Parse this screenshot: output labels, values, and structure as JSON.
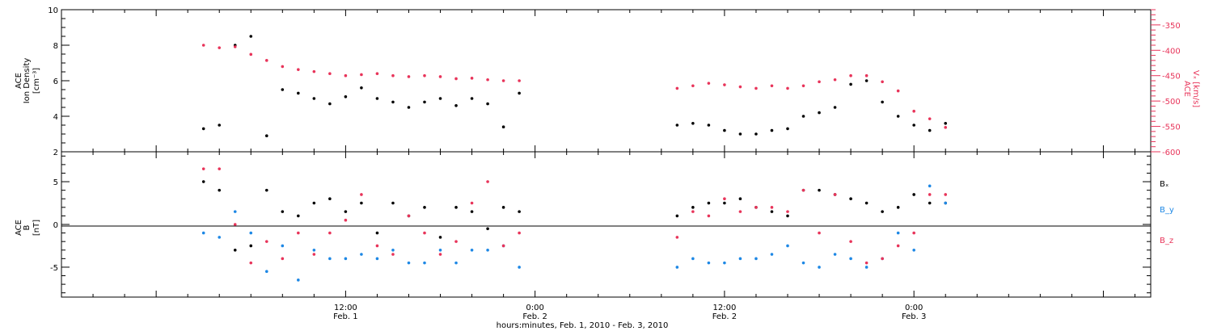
{
  "x_axis": {
    "title": "hours:minutes, Feb.  1, 2010 - Feb.  3, 2010",
    "range_hours": [
      -6,
      63
    ],
    "major_ticks": [
      {
        "hour": 12,
        "time": "12:00",
        "date": "Feb. 1"
      },
      {
        "hour": 24,
        "time": "0:00",
        "date": "Feb. 2"
      },
      {
        "hour": 36,
        "time": "12:00",
        "date": "Feb. 2"
      },
      {
        "hour": 48,
        "time": "0:00",
        "date": "Feb. 3"
      }
    ]
  },
  "panels": {
    "top": {
      "ylabel_left": [
        "ACE",
        "Ion Density",
        "[cm⁻³]"
      ],
      "ylabel_right": [
        "ACE",
        "Vₓ [km/s]"
      ],
      "left_ticks": [
        "2",
        "4",
        "6",
        "8",
        "10"
      ],
      "right_ticks": [
        "-600",
        "-550",
        "-500",
        "-450",
        "-400",
        "-350"
      ]
    },
    "bottom": {
      "ylabel_left": [
        "ACE",
        "B",
        "[nT]"
      ],
      "left_ticks": [
        "-5",
        "0",
        "5"
      ],
      "legend": [
        {
          "label": "Bₓ",
          "color": "#000000"
        },
        {
          "label": "B_y",
          "color": "#1e88e5"
        },
        {
          "label": "B_z",
          "color": "#e8345a"
        }
      ]
    }
  },
  "chart_data": [
    {
      "type": "scatter",
      "title": "",
      "xlabel": "hours:minutes, Feb.  1, 2010 - Feb.  3, 2010",
      "ylabel": "ACE Ion Density [cm⁻³]",
      "y2label": "ACE Vₓ [km/s]",
      "xlim": [
        -6,
        63
      ],
      "ylim": [
        2,
        10
      ],
      "y2lim": [
        -600,
        -320
      ],
      "grid": false,
      "series": [
        {
          "name": "",
          "axis": "left",
          "color": "#000000",
          "x": [
            3,
            4,
            5,
            6,
            7,
            8,
            9,
            10,
            11,
            12,
            13,
            14,
            15,
            16,
            17,
            18,
            19,
            20,
            21,
            22,
            23,
            33,
            34,
            35,
            36,
            37,
            38,
            39,
            40,
            41,
            42,
            43,
            44,
            45,
            46,
            47,
            48,
            49,
            50
          ],
          "y": [
            3.3,
            3.5,
            8.0,
            8.5,
            2.9,
            5.5,
            5.3,
            5.0,
            4.7,
            5.1,
            5.6,
            5.0,
            4.8,
            4.5,
            4.8,
            5.0,
            4.6,
            5.0,
            4.7,
            3.4,
            5.3,
            3.5,
            3.6,
            3.5,
            3.2,
            3.0,
            3.0,
            3.2,
            3.3,
            4.0,
            4.2,
            4.5,
            5.8,
            6.0,
            4.8,
            4.0,
            3.5,
            3.2,
            3.6
          ]
        },
        {
          "name": "",
          "axis": "right",
          "color": "#e8345a",
          "x": [
            3,
            4,
            5,
            6,
            7,
            8,
            9,
            10,
            11,
            12,
            13,
            14,
            15,
            16,
            17,
            18,
            19,
            20,
            21,
            22,
            23,
            33,
            34,
            35,
            36,
            37,
            38,
            39,
            40,
            41,
            42,
            43,
            44,
            45,
            46,
            47,
            48,
            49,
            50
          ],
          "y": [
            -390,
            -395,
            -393,
            -408,
            -420,
            -432,
            -438,
            -442,
            -446,
            -450,
            -448,
            -446,
            -450,
            -452,
            -450,
            -452,
            -456,
            -455,
            -458,
            -460,
            -460,
            -475,
            -470,
            -465,
            -468,
            -472,
            -475,
            -470,
            -475,
            -470,
            -462,
            -458,
            -450,
            -450,
            -462,
            -480,
            -520,
            -535,
            -552
          ]
        }
      ]
    },
    {
      "type": "scatter",
      "title": "",
      "xlabel": "hours:minutes, Feb.  1, 2010 - Feb.  3, 2010",
      "ylabel": "ACE B [nT]",
      "xlim": [
        -6,
        63
      ],
      "ylim": [
        -8.5,
        8.5
      ],
      "grid": false,
      "zero_line": true,
      "series": [
        {
          "name": "Bₓ",
          "color": "#000000",
          "x": [
            3,
            4,
            5,
            6,
            7,
            8,
            9,
            10,
            11,
            12,
            13,
            14,
            15,
            16,
            17,
            18,
            19,
            20,
            21,
            22,
            23,
            33,
            34,
            35,
            36,
            37,
            38,
            39,
            40,
            41,
            42,
            43,
            44,
            45,
            46,
            47,
            48,
            49,
            50
          ],
          "y": [
            5.0,
            4.0,
            -3.0,
            -2.5,
            4.0,
            1.5,
            1.0,
            2.5,
            3.0,
            1.5,
            2.5,
            -1.0,
            2.5,
            1.0,
            2.0,
            -1.5,
            2.0,
            1.5,
            -0.5,
            2.0,
            1.5,
            1.0,
            2.0,
            2.5,
            2.5,
            3.0,
            2.0,
            1.5,
            1.0,
            4.0,
            4.0,
            3.5,
            3.0,
            2.5,
            1.5,
            2.0,
            3.5,
            2.5,
            2.5
          ]
        },
        {
          "name": "B_y",
          "color": "#1e88e5",
          "x": [
            3,
            4,
            5,
            6,
            7,
            8,
            9,
            10,
            11,
            12,
            13,
            14,
            15,
            16,
            17,
            18,
            19,
            20,
            21,
            22,
            23,
            33,
            34,
            35,
            36,
            37,
            38,
            39,
            40,
            41,
            42,
            43,
            44,
            45,
            46,
            47,
            48,
            49,
            50
          ],
          "y": [
            -1.0,
            -1.5,
            1.5,
            -1.0,
            -5.5,
            -2.5,
            -6.5,
            -3.0,
            -4.0,
            -4.0,
            -3.5,
            -4.0,
            -3.0,
            -4.5,
            -4.5,
            -3.0,
            -4.5,
            -3.0,
            -3.0,
            -2.5,
            -5.0,
            -5.0,
            -4.0,
            -4.5,
            -4.5,
            -4.0,
            -4.0,
            -3.5,
            -2.5,
            -4.5,
            -5.0,
            -3.5,
            -4.0,
            -5.0,
            -4.0,
            -1.0,
            -3.0,
            4.5,
            2.5
          ]
        },
        {
          "name": "B_z",
          "color": "#e8345a",
          "x": [
            3,
            4,
            5,
            6,
            7,
            8,
            9,
            10,
            11,
            12,
            13,
            14,
            15,
            16,
            17,
            18,
            19,
            20,
            21,
            22,
            23,
            33,
            34,
            35,
            36,
            37,
            38,
            39,
            40,
            41,
            42,
            43,
            44,
            45,
            46,
            47,
            48,
            49,
            50
          ],
          "y": [
            6.5,
            6.5,
            0.0,
            -4.5,
            -2.0,
            -4.0,
            -1.0,
            -3.5,
            -1.0,
            0.5,
            3.5,
            -2.5,
            -3.5,
            1.0,
            -1.0,
            -3.5,
            -2.0,
            2.5,
            5.0,
            -2.5,
            -1.0,
            -1.5,
            1.5,
            1.0,
            3.0,
            1.5,
            2.0,
            2.0,
            1.5,
            4.0,
            -1.0,
            3.5,
            -2.0,
            -4.5,
            -4.0,
            -2.5,
            -1.0,
            3.5,
            3.5
          ]
        }
      ]
    }
  ]
}
